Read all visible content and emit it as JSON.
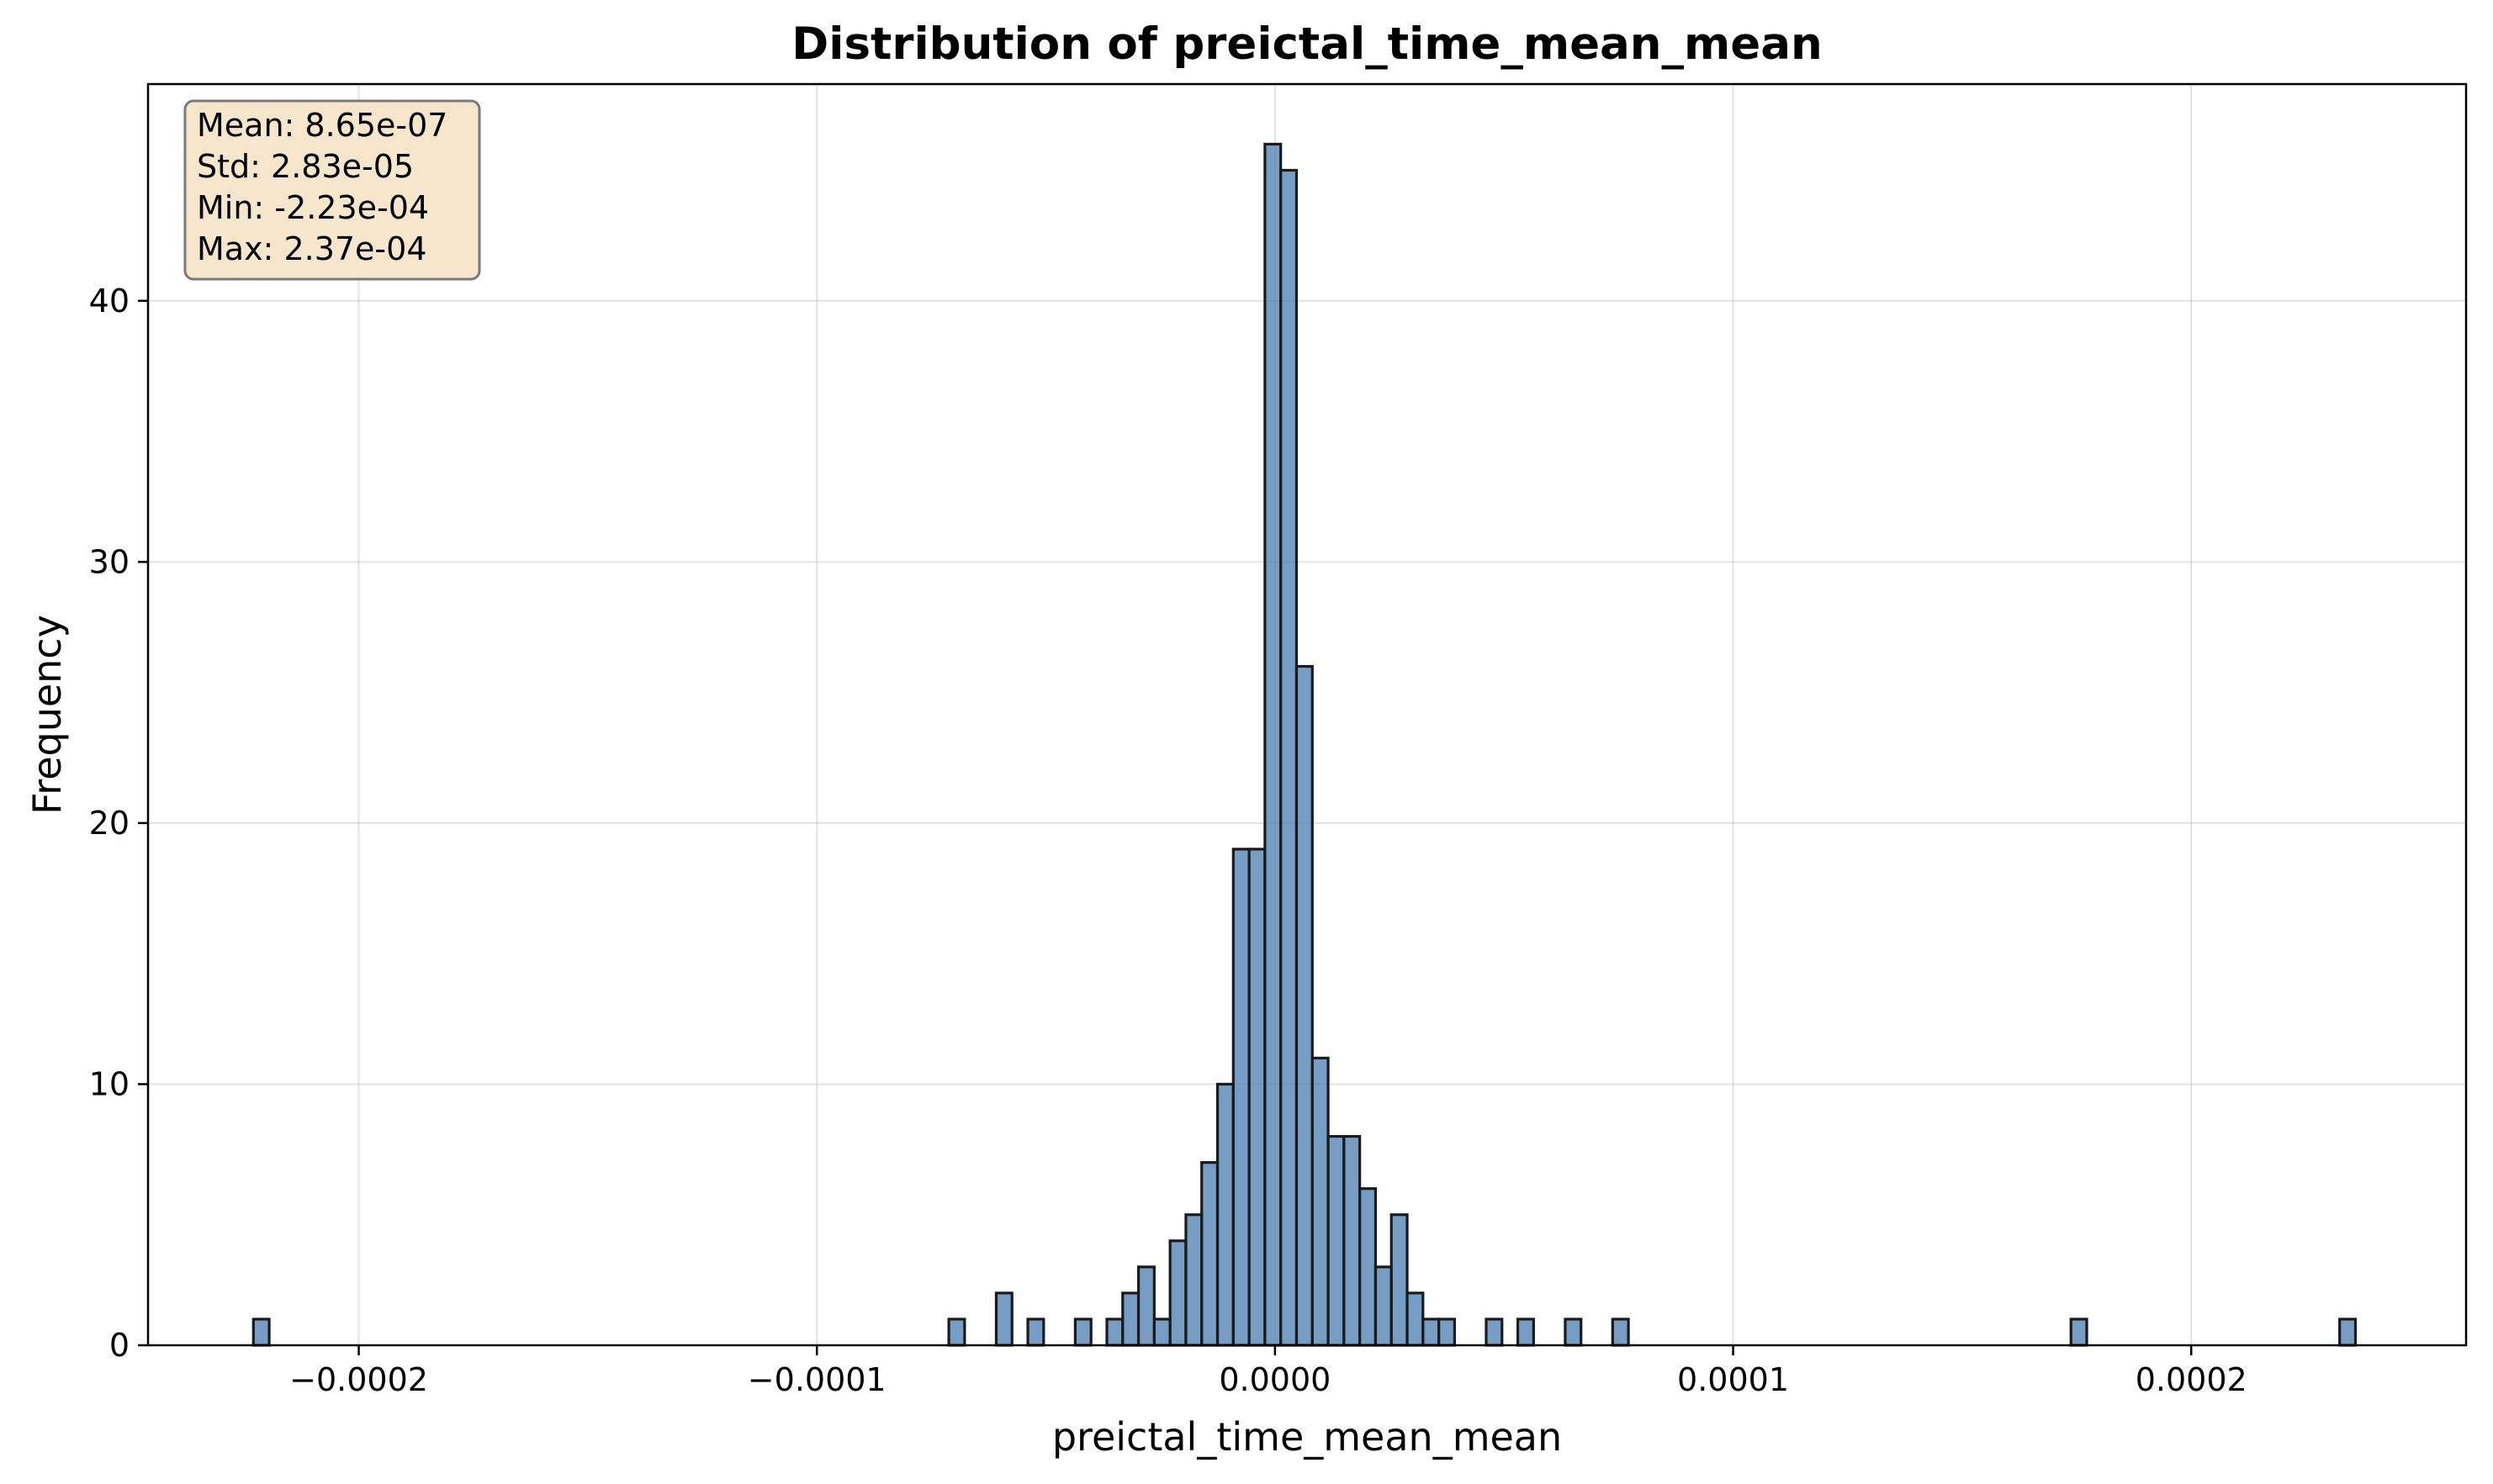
{
  "chart_data": {
    "type": "bar",
    "title": "Distribution of preictal_time_mean_mean",
    "xlabel": "preictal_time_mean_mean",
    "ylabel": "Frequency",
    "xlim": [
      -0.000246,
      0.00026
    ],
    "ylim": [
      0,
      48.3
    ],
    "xticks": [
      {
        "value": -0.0002,
        "label": "−0.0002"
      },
      {
        "value": -0.0001,
        "label": "−0.0001"
      },
      {
        "value": 0.0,
        "label": "0.0000"
      },
      {
        "value": 0.0001,
        "label": "0.0001"
      },
      {
        "value": 0.0002,
        "label": "0.0002"
      }
    ],
    "yticks": [
      {
        "value": 0,
        "label": "0"
      },
      {
        "value": 10,
        "label": "10"
      },
      {
        "value": 20,
        "label": "20"
      },
      {
        "value": 30,
        "label": "30"
      },
      {
        "value": 40,
        "label": "40"
      }
    ],
    "grid": true,
    "bin_min": -0.000223,
    "bin_width": 3.45e-06,
    "bins": [
      {
        "bin": 0,
        "count": 1
      },
      {
        "bin": 44,
        "count": 1
      },
      {
        "bin": 47,
        "count": 2
      },
      {
        "bin": 49,
        "count": 1
      },
      {
        "bin": 52,
        "count": 1
      },
      {
        "bin": 54,
        "count": 1
      },
      {
        "bin": 55,
        "count": 2
      },
      {
        "bin": 56,
        "count": 3
      },
      {
        "bin": 57,
        "count": 1
      },
      {
        "bin": 58,
        "count": 4
      },
      {
        "bin": 59,
        "count": 5
      },
      {
        "bin": 60,
        "count": 7
      },
      {
        "bin": 61,
        "count": 10
      },
      {
        "bin": 62,
        "count": 19
      },
      {
        "bin": 63,
        "count": 19
      },
      {
        "bin": 64,
        "count": 46
      },
      {
        "bin": 65,
        "count": 45
      },
      {
        "bin": 66,
        "count": 26
      },
      {
        "bin": 67,
        "count": 11
      },
      {
        "bin": 68,
        "count": 8
      },
      {
        "bin": 69,
        "count": 8
      },
      {
        "bin": 70,
        "count": 6
      },
      {
        "bin": 71,
        "count": 3
      },
      {
        "bin": 72,
        "count": 5
      },
      {
        "bin": 73,
        "count": 2
      },
      {
        "bin": 74,
        "count": 1
      },
      {
        "bin": 75,
        "count": 1
      },
      {
        "bin": 78,
        "count": 1
      },
      {
        "bin": 80,
        "count": 1
      },
      {
        "bin": 83,
        "count": 1
      },
      {
        "bin": 86,
        "count": 1
      },
      {
        "bin": 115,
        "count": 1
      },
      {
        "bin": 132,
        "count": 1
      }
    ],
    "stats_box": {
      "lines": [
        "Mean: 8.65e-07",
        "Std: 2.83e-05",
        "Min: -2.23e-04",
        "Max: 2.37e-04"
      ],
      "placement": "top-left"
    },
    "colors": {
      "bar_fill": "#4f81b4",
      "bar_edge": "#1a1a1a",
      "stats_box_fill": "#f5e6cc",
      "stats_box_edge": "#7a7a7a"
    }
  }
}
